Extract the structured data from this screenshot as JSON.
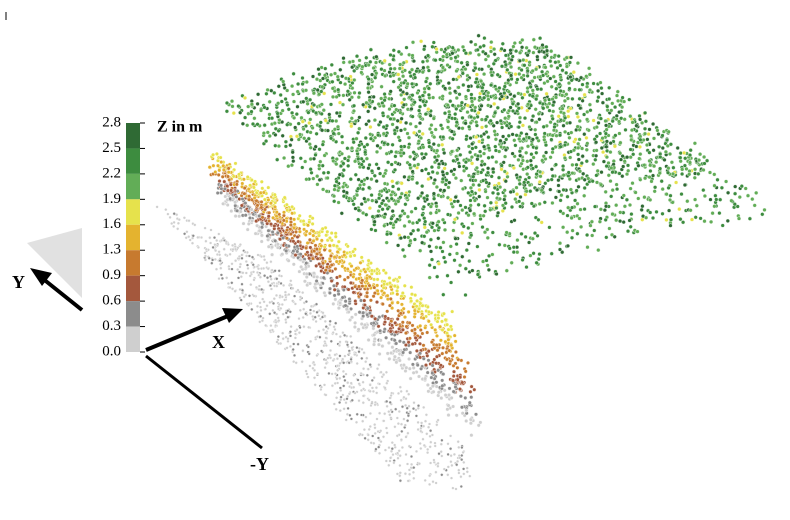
{
  "colorbar": {
    "title": "Z in m",
    "ticks": [
      "2.8",
      "2.5",
      "2.2",
      "1.9",
      "1.6",
      "1.3",
      "0.9",
      "0.6",
      "0.3",
      "0.0"
    ],
    "colors": [
      "#2f6a34",
      "#3d8c3f",
      "#62ad57",
      "#e6e24c",
      "#e4b32f",
      "#c77a2f",
      "#a4583d",
      "#8c8c8c",
      "#cfcfcf"
    ]
  },
  "axes": {
    "x": "X",
    "y": "Y",
    "neg_y": "-Y"
  }
}
